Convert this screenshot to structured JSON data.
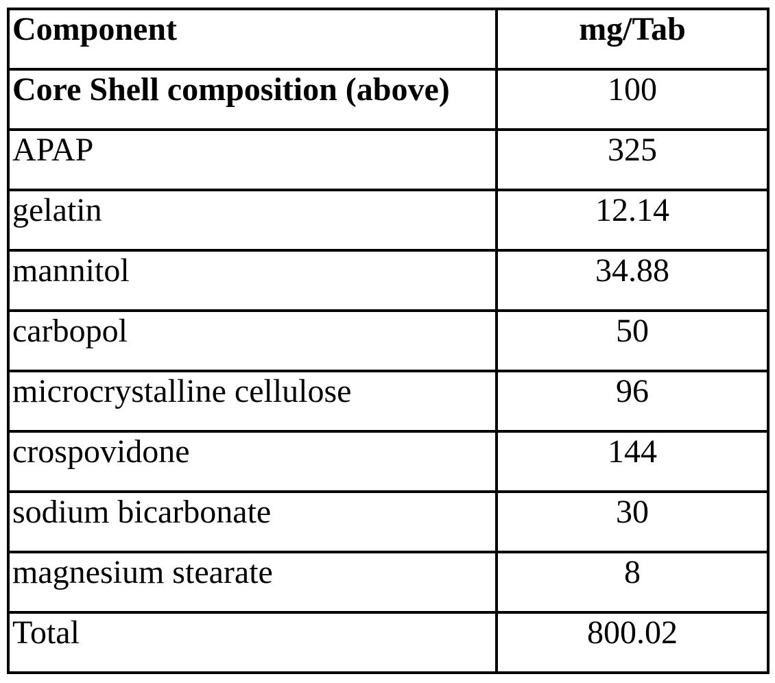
{
  "page": {
    "background_color": "#ffffff",
    "border_color": "#000000",
    "text_color": "#000000"
  },
  "table": {
    "header": {
      "component": "Component",
      "amount": "mg/Tab"
    },
    "rows": [
      {
        "component": "Core Shell composition (above)",
        "amount": "100"
      },
      {
        "component": "APAP",
        "amount": "325"
      },
      {
        "component": "gelatin",
        "amount": "12.14"
      },
      {
        "component": "mannitol",
        "amount": "34.88"
      },
      {
        "component": "carbopol",
        "amount": "50"
      },
      {
        "component": "microcrystalline cellulose",
        "amount": "96"
      },
      {
        "component": "crospovidone",
        "amount": "144"
      },
      {
        "component": "sodium bicarbonate",
        "amount": "30"
      },
      {
        "component": "magnesium stearate",
        "amount": "8"
      },
      {
        "component": "Total",
        "amount": "800.02"
      }
    ]
  }
}
